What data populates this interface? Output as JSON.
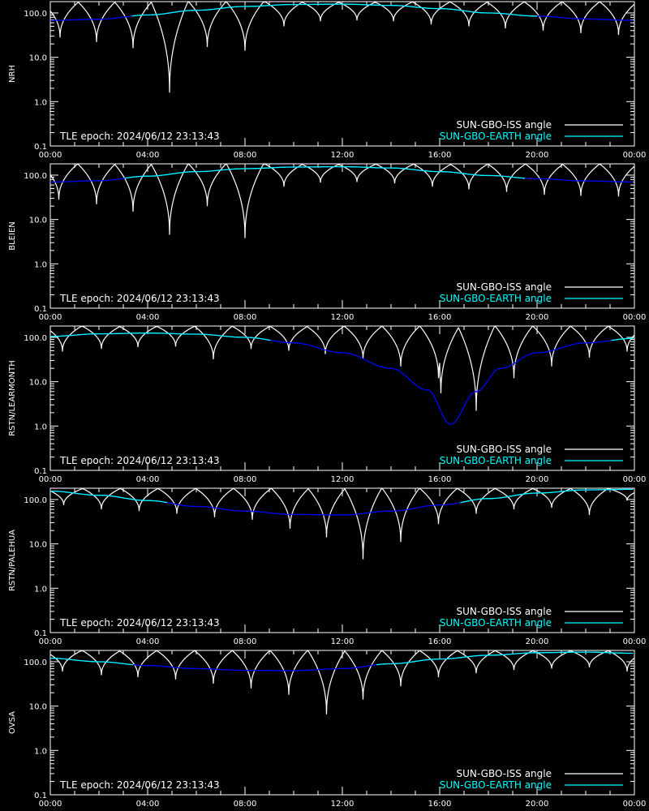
{
  "colors": {
    "background": "#000000",
    "axes": "#ffffff",
    "iss": "#ffffff",
    "earth_light": "#00ffff",
    "earth_dark": "#0000ff"
  },
  "chart_data": [
    {
      "type": "line",
      "ylabel": "NRH",
      "epoch_text": "TLE epoch: 2024/06/12 23:13:43",
      "x_ticks": [
        "00:00",
        "04:00",
        "08:00",
        "12:00",
        "16:00",
        "20:00",
        "00:00"
      ],
      "y_ticks": [
        "0.1",
        "1.0",
        "10.0",
        "100.0"
      ],
      "yscale": "log",
      "ylim": [
        0.1,
        180
      ],
      "xlim": [
        0,
        24
      ],
      "series": [
        {
          "name": "SUN-GBO-ISS angle",
          "color": "#ffffff",
          "orbit_period_h": 1.55,
          "dips": [
            [
              0.4,
              28
            ],
            [
              1.9,
              22
            ],
            [
              3.4,
              16
            ],
            [
              4.9,
              1.6
            ],
            [
              6.45,
              17
            ],
            [
              8.0,
              14
            ],
            [
              9.6,
              50
            ],
            [
              11.1,
              65
            ],
            [
              12.6,
              68
            ],
            [
              14.1,
              65
            ],
            [
              15.65,
              55
            ],
            [
              17.2,
              50
            ],
            [
              18.7,
              45
            ],
            [
              20.25,
              40
            ],
            [
              21.8,
              35
            ],
            [
              23.35,
              32
            ]
          ]
        },
        {
          "name": "SUN-GBO-EARTH angle",
          "color": "#00ffff",
          "points": [
            [
              0,
              68
            ],
            [
              2,
              72
            ],
            [
              4,
              90
            ],
            [
              6,
              115
            ],
            [
              8,
              140
            ],
            [
              10,
              155
            ],
            [
              12,
              158
            ],
            [
              14,
              148
            ],
            [
              16,
              125
            ],
            [
              18,
              100
            ],
            [
              20,
              85
            ],
            [
              22,
              73
            ],
            [
              24,
              68
            ]
          ]
        }
      ],
      "legend": [
        "SUN-GBO-ISS angle",
        "SUN-GBO-EARTH angle"
      ]
    },
    {
      "type": "line",
      "ylabel": "BLEIEN",
      "epoch_text": "TLE epoch: 2024/06/12 23:13:43",
      "x_ticks": [
        "00:00",
        "04:00",
        "08:00",
        "12:00",
        "16:00",
        "20:00",
        "00:00"
      ],
      "y_ticks": [
        "0.1",
        "1.0",
        "10.0",
        "100.0"
      ],
      "yscale": "log",
      "ylim": [
        0.1,
        180
      ],
      "xlim": [
        0,
        24
      ],
      "series": [
        {
          "name": "SUN-GBO-ISS angle",
          "color": "#ffffff",
          "orbit_period_h": 1.55,
          "dips": [
            [
              0.35,
              28
            ],
            [
              1.9,
              22
            ],
            [
              3.4,
              15
            ],
            [
              4.9,
              4.5
            ],
            [
              6.45,
              20
            ],
            [
              8.0,
              3.8
            ],
            [
              9.6,
              55
            ],
            [
              11.1,
              68
            ],
            [
              12.6,
              70
            ],
            [
              14.15,
              65
            ],
            [
              15.7,
              55
            ],
            [
              17.2,
              48
            ],
            [
              18.75,
              42
            ],
            [
              20.3,
              36
            ],
            [
              21.8,
              34
            ],
            [
              23.35,
              33
            ]
          ]
        },
        {
          "name": "SUN-GBO-EARTH angle",
          "color": "#00ffff",
          "points": [
            [
              0,
              70
            ],
            [
              2,
              75
            ],
            [
              4,
              95
            ],
            [
              6,
              120
            ],
            [
              8,
              140
            ],
            [
              10,
              152
            ],
            [
              12,
              155
            ],
            [
              14,
              145
            ],
            [
              16,
              120
            ],
            [
              18,
              98
            ],
            [
              20,
              83
            ],
            [
              22,
              74
            ],
            [
              24,
              70
            ]
          ]
        }
      ],
      "legend": [
        "SUN-GBO-ISS angle",
        "SUN-GBO-EARTH angle"
      ]
    },
    {
      "type": "line",
      "ylabel": "RSTN/LEARMONTH",
      "epoch_text": "TLE epoch: 2024/06/12 23:13:43",
      "x_ticks": [
        "00:00",
        "04:00",
        "08:00",
        "12:00",
        "16:00",
        "20:00",
        "00:00"
      ],
      "y_ticks": [
        "0.1",
        "1.0",
        "10.0",
        "100.0"
      ],
      "yscale": "log",
      "ylim": [
        0.1,
        180
      ],
      "xlim": [
        0,
        24
      ],
      "series": [
        {
          "name": "SUN-GBO-ISS angle",
          "color": "#ffffff",
          "orbit_period_h": 1.55,
          "dips": [
            [
              0.5,
              48
            ],
            [
              2.1,
              55
            ],
            [
              3.6,
              60
            ],
            [
              5.15,
              62
            ],
            [
              6.7,
              32
            ],
            [
              8.25,
              55
            ],
            [
              9.8,
              50
            ],
            [
              11.3,
              42
            ],
            [
              12.85,
              32
            ],
            [
              14.4,
              22
            ],
            [
              15.95,
              12
            ],
            [
              16.05,
              5.5
            ],
            [
              17.5,
              2.2
            ],
            [
              19.05,
              12
            ],
            [
              20.6,
              22
            ],
            [
              22.15,
              35
            ],
            [
              23.7,
              48
            ]
          ]
        },
        {
          "name": "SUN-GBO-EARTH angle",
          "color": "#0000ff",
          "points": [
            [
              0,
              105
            ],
            [
              2,
              120
            ],
            [
              4,
              125
            ],
            [
              6,
              118
            ],
            [
              8,
              100
            ],
            [
              10,
              75
            ],
            [
              12,
              45
            ],
            [
              14,
              20
            ],
            [
              15.5,
              6.5
            ],
            [
              16.45,
              1.1
            ],
            [
              17.5,
              6
            ],
            [
              18.5,
              20
            ],
            [
              20,
              45
            ],
            [
              22,
              75
            ],
            [
              24,
              95
            ]
          ]
        }
      ],
      "legend": [
        "SUN-GBO-ISS angle",
        "SUN-GBO-EARTH angle"
      ]
    },
    {
      "type": "line",
      "ylabel": "RSTN/PALEHUA",
      "epoch_text": "TLE epoch: 2024/06/12 23:13:43",
      "x_ticks": [
        "00:00",
        "04:00",
        "08:00",
        "12:00",
        "16:00",
        "20:00",
        "00:00"
      ],
      "y_ticks": [
        "0.1",
        "1.0",
        "10.0",
        "100.0"
      ],
      "yscale": "log",
      "ylim": [
        0.1,
        180
      ],
      "xlim": [
        0,
        24
      ],
      "series": [
        {
          "name": "SUN-GBO-ISS angle",
          "color": "#ffffff",
          "orbit_period_h": 1.55,
          "dips": [
            [
              0.55,
              75
            ],
            [
              2.1,
              60
            ],
            [
              3.65,
              55
            ],
            [
              5.2,
              48
            ],
            [
              6.75,
              40
            ],
            [
              8.3,
              35
            ],
            [
              9.85,
              22
            ],
            [
              11.35,
              14
            ],
            [
              12.85,
              4.5
            ],
            [
              14.4,
              11
            ],
            [
              15.95,
              28
            ],
            [
              17.5,
              48
            ],
            [
              19.05,
              60
            ],
            [
              20.6,
              65
            ],
            [
              22.15,
              45
            ],
            [
              23.7,
              95
            ]
          ]
        },
        {
          "name": "SUN-GBO-EARTH angle",
          "color": "#00ffff",
          "points": [
            [
              0,
              155
            ],
            [
              2,
              125
            ],
            [
              4,
              95
            ],
            [
              6,
              70
            ],
            [
              8,
              55
            ],
            [
              10,
              46
            ],
            [
              12,
              45
            ],
            [
              14,
              55
            ],
            [
              16,
              75
            ],
            [
              18,
              105
            ],
            [
              20,
              140
            ],
            [
              22,
              165
            ],
            [
              24,
              170
            ]
          ]
        }
      ],
      "legend": [
        "SUN-GBO-ISS angle",
        "SUN-GBO-EARTH angle"
      ]
    },
    {
      "type": "line",
      "ylabel": "OVSA",
      "epoch_text": "TLE epoch: 2024/06/12 23:13:43",
      "x_ticks": [
        "00:00",
        "04:00",
        "08:00",
        "12:00",
        "16:00",
        "20:00",
        "00:00"
      ],
      "y_ticks": [
        "0.1",
        "1.0",
        "10.0",
        "100.0"
      ],
      "yscale": "log",
      "ylim": [
        0.1,
        180
      ],
      "xlim": [
        0,
        24
      ],
      "series": [
        {
          "name": "SUN-GBO-ISS angle",
          "color": "#ffffff",
          "orbit_period_h": 1.55,
          "dips": [
            [
              0.5,
              60
            ],
            [
              2.1,
              50
            ],
            [
              3.6,
              45
            ],
            [
              5.15,
              40
            ],
            [
              6.7,
              32
            ],
            [
              8.25,
              25
            ],
            [
              9.8,
              18
            ],
            [
              11.35,
              6.5
            ],
            [
              12.85,
              14
            ],
            [
              14.4,
              28
            ],
            [
              15.95,
              45
            ],
            [
              17.5,
              55
            ],
            [
              19.05,
              65
            ],
            [
              20.6,
              70
            ],
            [
              22.15,
              75
            ],
            [
              23.7,
              60
            ]
          ]
        },
        {
          "name": "SUN-GBO-EARTH angle",
          "color": "#00ffff",
          "points": [
            [
              0,
              120
            ],
            [
              2,
              100
            ],
            [
              4,
              82
            ],
            [
              6,
              70
            ],
            [
              8,
              64
            ],
            [
              10,
              63
            ],
            [
              12,
              70
            ],
            [
              14,
              90
            ],
            [
              16,
              115
            ],
            [
              18,
              140
            ],
            [
              20,
              160
            ],
            [
              22,
              165
            ],
            [
              24,
              155
            ]
          ]
        }
      ],
      "legend": [
        "SUN-GBO-ISS angle",
        "SUN-GBO-EARTH angle"
      ]
    }
  ]
}
